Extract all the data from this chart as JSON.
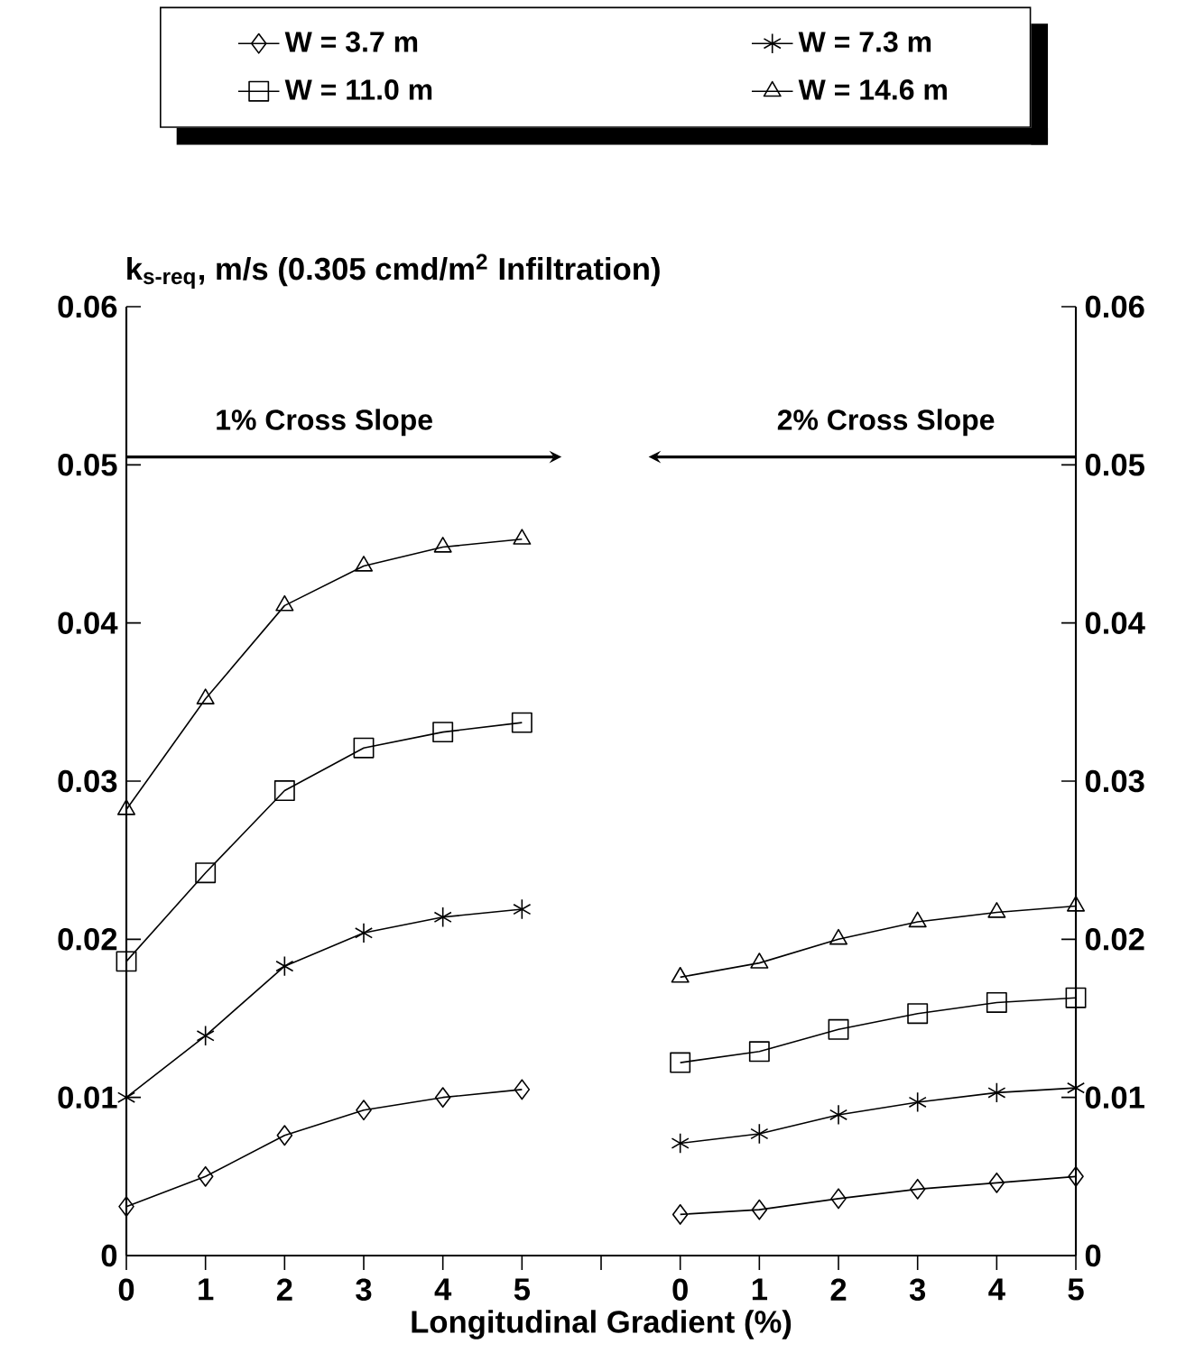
{
  "chart_data": {
    "type": "line",
    "xlabel": "Longitudinal Gradient (%)",
    "ylabel": "k$_{s-req}$, m/s (0.305 cmd/m$^{2}$ Infiltration)",
    "categories": [
      "0",
      "1",
      "2",
      "3",
      "4",
      "5",
      null,
      "0",
      "1",
      "2",
      "3",
      "4",
      "5"
    ],
    "ylim": [
      0,
      0.06
    ],
    "yticks": [
      0,
      0.01,
      0.02,
      0.03,
      0.04,
      0.05,
      0.06
    ],
    "y2lim": [
      0,
      0.06
    ],
    "y2ticks": [
      0,
      0.01,
      0.02,
      0.03,
      0.04,
      0.05,
      0.06
    ],
    "legend": "top",
    "grid": false,
    "line_style": "solid",
    "annotations": [
      "1% Cross Slope",
      "2% Cross Slope"
    ],
    "series": [
      {
        "name": "W = 3.7 m",
        "color": "#000000",
        "marker": "diamond",
        "values": [
          0.0031,
          0.005,
          0.0076,
          0.0092,
          0.01,
          0.0105,
          null,
          0.0026,
          0.0029,
          0.0036,
          0.0042,
          0.0046,
          0.005
        ]
      },
      {
        "name": "W = 7.3 m",
        "color": "#000000",
        "marker": "cross",
        "values": [
          0.01,
          0.0139,
          0.0183,
          0.0204,
          0.0214,
          0.0219,
          null,
          0.0071,
          0.0077,
          0.0089,
          0.0097,
          0.0103,
          0.0106
        ]
      },
      {
        "name": "W = 11.0 m",
        "color": "#000000",
        "marker": "square",
        "values": [
          0.0186,
          0.0242,
          0.0294,
          0.0321,
          0.0331,
          0.0337,
          null,
          0.0122,
          0.0129,
          0.0143,
          0.0153,
          0.016,
          0.0163
        ]
      },
      {
        "name": "W = 14.6 m",
        "color": "#000000",
        "marker": "triangle",
        "values": [
          0.0282,
          0.0352,
          0.0411,
          0.0436,
          0.0448,
          0.0453,
          null,
          0.0176,
          0.0185,
          0.02,
          0.0211,
          0.0217,
          0.0221
        ]
      }
    ]
  }
}
